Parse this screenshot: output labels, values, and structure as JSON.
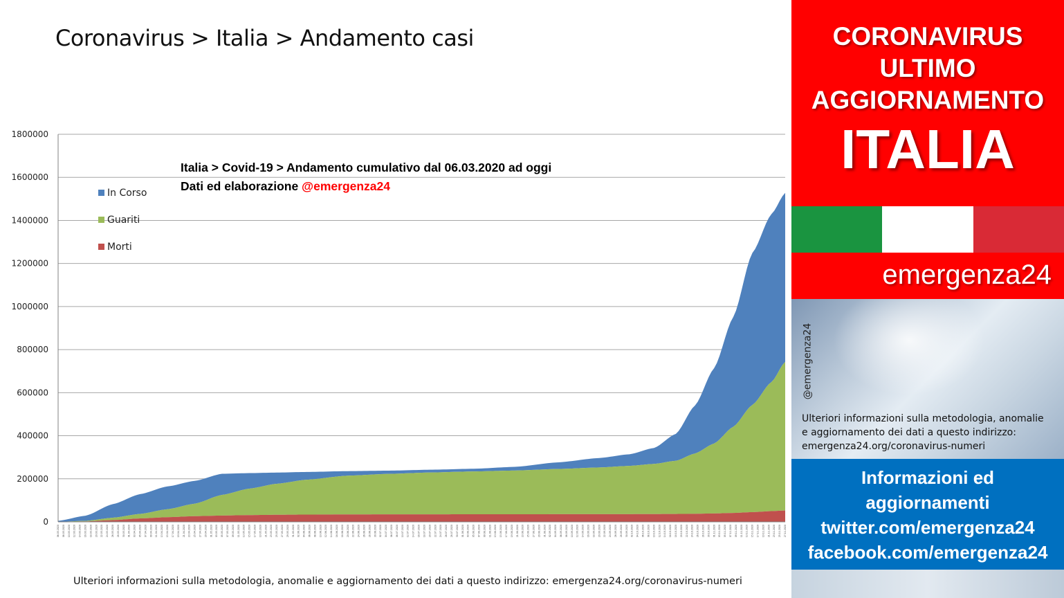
{
  "page": {
    "title": "Coronavirus > Italia > Andamento casi",
    "footer_note": "Ulteriori informazioni sulla metodologia, anomalie e aggiornamento dei dati a questo indirizzo: emergenza24.org/coronavirus-numeri"
  },
  "side_panel": {
    "header_lines": [
      "CORONAVIRUS",
      "ULTIMO",
      "AGGIORNAMENTO"
    ],
    "header_big": "ITALIA",
    "brand": "emergenza24",
    "vertical_handle": "@emergenza24",
    "note_lines": [
      "Ulteriori informazioni sulla metodologia, anomalie",
      "e aggiornamento dei dati a questo indirizzo:",
      "emergenza24.org/coronavirus-numeri"
    ],
    "info_lines": [
      "Informazioni ed",
      "aggiornamenti",
      "twitter.com/emergenza24",
      "facebook.com/emergenza24"
    ],
    "colors": {
      "red": "#ff0000",
      "flag_green": "#1a9440",
      "flag_white": "#ffffff",
      "flag_red": "#d92a36",
      "blue": "#0070c0"
    }
  },
  "chart_data": {
    "type": "area",
    "stacked": true,
    "title_line1": "Italia > Covid-19 > Andamento cumulativo dal 06.03.2020 ad oggi",
    "title_line2_prefix": "Dati ed elaborazione ",
    "title_line2_handle": "@emergenza24",
    "ylim": [
      0,
      1800000
    ],
    "yticks": [
      0,
      200000,
      400000,
      600000,
      800000,
      1000000,
      1200000,
      1400000,
      1600000,
      1800000
    ],
    "grid": true,
    "legend_position": "top-left",
    "x_start": "2020-03-06",
    "x_end": "2020-11-27",
    "x_tick_labels": "daily dates (unreadable)",
    "series": [
      {
        "name": "In Corso",
        "color": "#4f81bd",
        "keypoints": [
          [
            "2020-03-06",
            4000
          ],
          [
            "2020-03-16",
            24000
          ],
          [
            "2020-03-26",
            63000
          ],
          [
            "2020-04-05",
            92000
          ],
          [
            "2020-04-15",
            106000
          ],
          [
            "2020-04-25",
            106000
          ],
          [
            "2020-05-05",
            98000
          ],
          [
            "2020-05-15",
            72000
          ],
          [
            "2020-05-25",
            52000
          ],
          [
            "2020-06-05",
            36000
          ],
          [
            "2020-06-20",
            21000
          ],
          [
            "2020-07-05",
            15000
          ],
          [
            "2020-07-20",
            13000
          ],
          [
            "2020-08-05",
            12500
          ],
          [
            "2020-08-20",
            17000
          ],
          [
            "2020-09-05",
            31000
          ],
          [
            "2020-09-20",
            44000
          ],
          [
            "2020-10-01",
            54000
          ],
          [
            "2020-10-10",
            74000
          ],
          [
            "2020-10-18",
            125000
          ],
          [
            "2020-10-25",
            223000
          ],
          [
            "2020-11-01",
            350000
          ],
          [
            "2020-11-08",
            510000
          ],
          [
            "2020-11-15",
            706000
          ],
          [
            "2020-11-22",
            780000
          ],
          [
            "2020-11-27",
            785000
          ]
        ]
      },
      {
        "name": "Guariti",
        "color": "#9bbb59",
        "keypoints": [
          [
            "2020-03-06",
            500
          ],
          [
            "2020-03-16",
            2300
          ],
          [
            "2020-03-26",
            11000
          ],
          [
            "2020-04-05",
            21000
          ],
          [
            "2020-04-15",
            37000
          ],
          [
            "2020-04-25",
            58000
          ],
          [
            "2020-05-05",
            96000
          ],
          [
            "2020-05-15",
            123000
          ],
          [
            "2020-05-25",
            144000
          ],
          [
            "2020-06-05",
            162000
          ],
          [
            "2020-06-20",
            180000
          ],
          [
            "2020-07-05",
            188000
          ],
          [
            "2020-07-20",
            194000
          ],
          [
            "2020-08-05",
            199000
          ],
          [
            "2020-08-20",
            203000
          ],
          [
            "2020-09-05",
            210000
          ],
          [
            "2020-09-20",
            217000
          ],
          [
            "2020-10-01",
            224000
          ],
          [
            "2020-10-10",
            233000
          ],
          [
            "2020-10-18",
            247000
          ],
          [
            "2020-10-25",
            280000
          ],
          [
            "2020-11-01",
            325000
          ],
          [
            "2020-11-08",
            400000
          ],
          [
            "2020-11-15",
            498000
          ],
          [
            "2020-11-22",
            600000
          ],
          [
            "2020-11-27",
            690000
          ]
        ]
      },
      {
        "name": "Morti",
        "color": "#c0504d",
        "keypoints": [
          [
            "2020-03-06",
            200
          ],
          [
            "2020-03-16",
            2200
          ],
          [
            "2020-03-26",
            8200
          ],
          [
            "2020-04-05",
            15900
          ],
          [
            "2020-04-15",
            21600
          ],
          [
            "2020-04-25",
            26400
          ],
          [
            "2020-05-05",
            29300
          ],
          [
            "2020-05-15",
            31400
          ],
          [
            "2020-05-25",
            32900
          ],
          [
            "2020-06-05",
            33800
          ],
          [
            "2020-06-20",
            34600
          ],
          [
            "2020-07-05",
            34900
          ],
          [
            "2020-07-20",
            35100
          ],
          [
            "2020-08-05",
            35200
          ],
          [
            "2020-08-20",
            35400
          ],
          [
            "2020-09-05",
            35600
          ],
          [
            "2020-09-20",
            35700
          ],
          [
            "2020-10-01",
            35900
          ],
          [
            "2020-10-10",
            36200
          ],
          [
            "2020-10-18",
            36700
          ],
          [
            "2020-10-25",
            37500
          ],
          [
            "2020-11-01",
            39000
          ],
          [
            "2020-11-08",
            41400
          ],
          [
            "2020-11-15",
            45200
          ],
          [
            "2020-11-22",
            49800
          ],
          [
            "2020-11-27",
            52800
          ]
        ]
      }
    ]
  }
}
